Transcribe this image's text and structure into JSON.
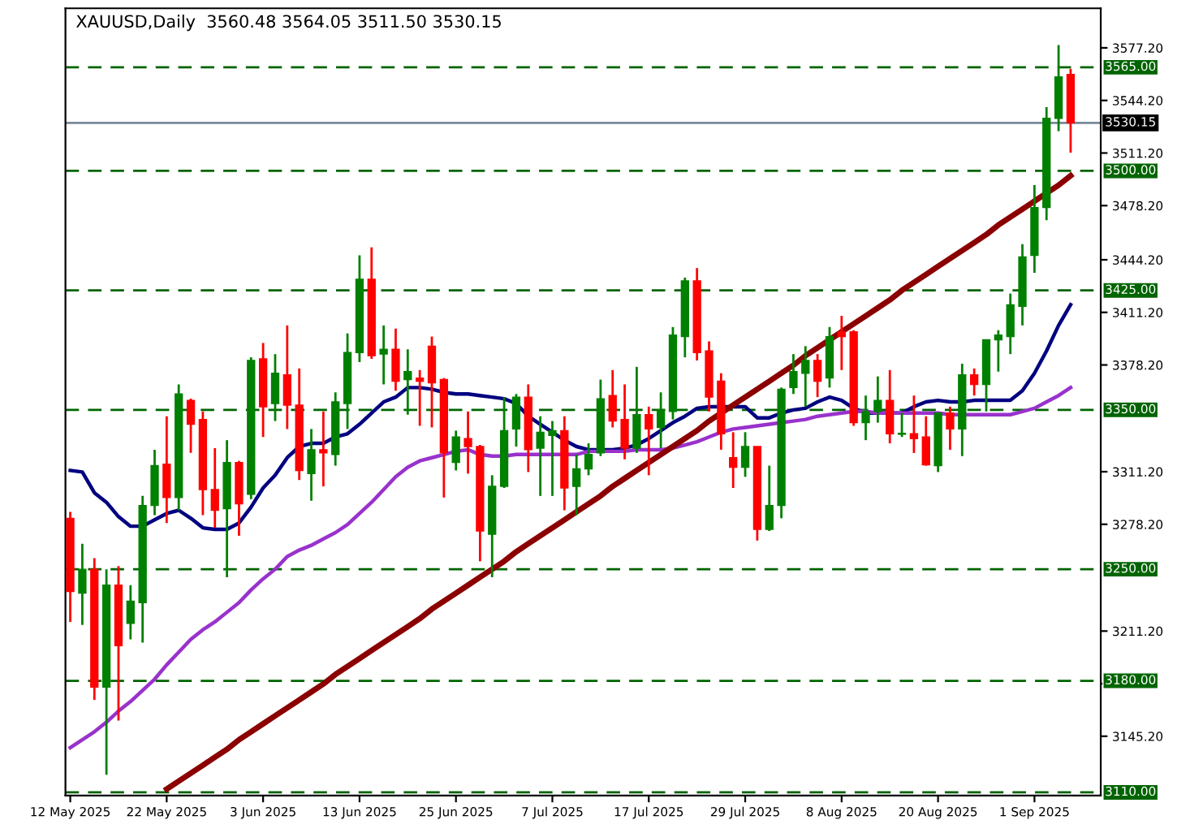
{
  "chart_data": {
    "type": "candlestick",
    "title": "XAUUSD,Daily  3560.48 3564.05 3511.50 3530.15",
    "categories": [
      "12 May 2025",
      null,
      null,
      null,
      null,
      null,
      null,
      null,
      "22 May 2025",
      null,
      null,
      null,
      null,
      null,
      null,
      null,
      "3 Jun 2025",
      null,
      null,
      null,
      null,
      null,
      null,
      null,
      "13 Jun 2025",
      null,
      null,
      null,
      null,
      null,
      null,
      null,
      "25 Jun 2025",
      null,
      null,
      null,
      null,
      null,
      null,
      null,
      "7 Jul 2025",
      null,
      null,
      null,
      null,
      null,
      null,
      null,
      "17 Jul 2025",
      null,
      null,
      null,
      null,
      null,
      null,
      null,
      "29 Jul 2025",
      null,
      null,
      null,
      null,
      null,
      null,
      null,
      "8 Aug 2025",
      null,
      null,
      null,
      null,
      null,
      null,
      null,
      "20 Aug 2025",
      null,
      null,
      null,
      null,
      null,
      null,
      null,
      "1 Sep 2025",
      null,
      null,
      null
    ],
    "ohlc": [
      [
        3282,
        3286,
        3217,
        3236
      ],
      [
        3235,
        3266,
        3215,
        3250
      ],
      [
        3250,
        3257,
        3168,
        3176
      ],
      [
        3176,
        3250,
        3121,
        3240
      ],
      [
        3240,
        3252,
        3155,
        3202
      ],
      [
        3216,
        3240,
        3206,
        3230
      ],
      [
        3229,
        3296,
        3204,
        3290
      ],
      [
        3290,
        3325,
        3284,
        3315
      ],
      [
        3316,
        3346,
        3279,
        3295
      ],
      [
        3295,
        3366,
        3287,
        3360
      ],
      [
        3356,
        3357,
        3323,
        3341
      ],
      [
        3344,
        3349,
        3284,
        3300
      ],
      [
        3300,
        3326,
        3276,
        3287
      ],
      [
        3288,
        3331,
        3245,
        3317
      ],
      [
        3317,
        3318,
        3271,
        3291
      ],
      [
        3297,
        3383,
        3294,
        3381
      ],
      [
        3382,
        3392,
        3333,
        3352
      ],
      [
        3354,
        3385,
        3343,
        3373
      ],
      [
        3372,
        3403,
        3338,
        3353
      ],
      [
        3353,
        3376,
        3306,
        3312
      ],
      [
        3310,
        3338,
        3293,
        3325
      ],
      [
        3325,
        3349,
        3302,
        3323
      ],
      [
        3322,
        3361,
        3315,
        3355
      ],
      [
        3354,
        3398,
        3338,
        3386
      ],
      [
        3386,
        3447,
        3380,
        3432
      ],
      [
        3432,
        3452,
        3382,
        3384
      ],
      [
        3385,
        3403,
        3366,
        3388
      ],
      [
        3388,
        3401,
        3362,
        3368
      ],
      [
        3369,
        3388,
        3347,
        3374
      ],
      [
        3370,
        3375,
        3340,
        3368
      ],
      [
        3390,
        3396,
        3339,
        3367
      ],
      [
        3369,
        3370,
        3295,
        3323
      ],
      [
        3317,
        3337,
        3312,
        3333
      ],
      [
        3332,
        3349,
        3310,
        3327
      ],
      [
        3327,
        3328,
        3255,
        3274
      ],
      [
        3272,
        3309,
        3245,
        3302
      ],
      [
        3302,
        3358,
        3301,
        3337
      ],
      [
        3338,
        3360,
        3327,
        3358
      ],
      [
        3358,
        3366,
        3311,
        3325
      ],
      [
        3326,
        3346,
        3296,
        3336
      ],
      [
        3334,
        3343,
        3296,
        3337
      ],
      [
        3337,
        3346,
        3287,
        3301
      ],
      [
        3302,
        3322,
        3284,
        3313
      ],
      [
        3313,
        3329,
        3309,
        3322
      ],
      [
        3323,
        3369,
        3321,
        3357
      ],
      [
        3359,
        3375,
        3339,
        3343
      ],
      [
        3344,
        3366,
        3319,
        3326
      ],
      [
        3326,
        3377,
        3323,
        3347
      ],
      [
        3347,
        3352,
        3309,
        3338
      ],
      [
        3339,
        3361,
        3326,
        3350
      ],
      [
        3349,
        3402,
        3344,
        3397
      ],
      [
        3396,
        3433,
        3383,
        3431
      ],
      [
        3431,
        3439,
        3381,
        3386
      ],
      [
        3387,
        3393,
        3349,
        3358
      ],
      [
        3368,
        3373,
        3325,
        3335
      ],
      [
        3320,
        3336,
        3301,
        3314
      ],
      [
        3314,
        3336,
        3308,
        3327
      ],
      [
        3327,
        3327,
        3268,
        3275
      ],
      [
        3275,
        3315,
        3274,
        3290
      ],
      [
        3290,
        3364,
        3282,
        3363
      ],
      [
        3364,
        3385,
        3360,
        3374
      ],
      [
        3373,
        3390,
        3352,
        3381
      ],
      [
        3381,
        3385,
        3358,
        3368
      ],
      [
        3370,
        3402,
        3364,
        3396
      ],
      [
        3399,
        3409,
        3375,
        3396
      ],
      [
        3399,
        3400,
        3340,
        3342
      ],
      [
        3342,
        3359,
        3331,
        3349
      ],
      [
        3349,
        3371,
        3342,
        3356
      ],
      [
        3356,
        3375,
        3329,
        3335
      ],
      [
        3335,
        3348,
        3333,
        3335.5
      ],
      [
        3335,
        3359,
        3323,
        3332
      ],
      [
        3333,
        3346,
        3315,
        3315.5
      ],
      [
        3315,
        3348,
        3311,
        3348
      ],
      [
        3348,
        3352,
        3325,
        3338
      ],
      [
        3338,
        3379,
        3321,
        3372
      ],
      [
        3372,
        3376,
        3359,
        3366
      ],
      [
        3366,
        3394,
        3349,
        3394
      ],
      [
        3394,
        3400,
        3374,
        3397
      ],
      [
        3396,
        3423,
        3385,
        3416
      ],
      [
        3415,
        3454,
        3403,
        3446
      ],
      [
        3447,
        3491,
        3436,
        3477
      ],
      [
        3477,
        3540,
        3469,
        3533
      ],
      [
        3533,
        3579,
        3525,
        3559
      ],
      [
        3560.48,
        3564.05,
        3511.5,
        3530.15
      ]
    ],
    "colors": [
      "#ff0000",
      "#008000",
      "#ff0000",
      "#008000",
      "#ff0000",
      "#008000",
      "#008000",
      "#008000",
      "#ff0000",
      "#008000",
      "#ff0000",
      "#ff0000",
      "#ff0000",
      "#008000",
      "#ff0000",
      "#008000",
      "#ff0000",
      "#008000",
      "#ff0000",
      "#ff0000",
      "#008000",
      "#ff0000",
      "#008000",
      "#008000",
      "#008000",
      "#ff0000",
      "#008000",
      "#ff0000",
      "#008000",
      "#ff0000",
      "#ff0000",
      "#ff0000",
      "#008000",
      "#ff0000",
      "#ff0000",
      "#008000",
      "#008000",
      "#008000",
      "#ff0000",
      "#008000",
      "#008000",
      "#ff0000",
      "#008000",
      "#008000",
      "#008000",
      "#ff0000",
      "#ff0000",
      "#008000",
      "#ff0000",
      "#008000",
      "#008000",
      "#008000",
      "#ff0000",
      "#ff0000",
      "#ff0000",
      "#ff0000",
      "#008000",
      "#ff0000",
      "#008000",
      "#008000",
      "#008000",
      "#008000",
      "#ff0000",
      "#008000",
      "#ff0000",
      "#ff0000",
      "#008000",
      "#008000",
      "#ff0000",
      "#008000",
      "#ff0000",
      "#ff0000",
      "#008000",
      "#ff0000",
      "#008000",
      "#ff0000",
      "#008000",
      "#008000",
      "#008000",
      "#008000",
      "#008000",
      "#008000",
      "#008000",
      "#ff0000"
    ],
    "series": [
      {
        "type": "line",
        "color": "#000080",
        "values": [
          3312,
          3311,
          3298,
          3292,
          3283,
          3277,
          3277,
          3281,
          3285,
          3287,
          3282,
          3276,
          3275,
          3275,
          3279,
          3289,
          3301,
          3309,
          3320,
          3327,
          3329,
          3329,
          3333,
          3335,
          3341,
          3348,
          3355,
          3358,
          3364,
          3364,
          3363,
          3361,
          3360,
          3360,
          3359,
          3358,
          3357,
          3354,
          3346,
          3341,
          3336,
          3331,
          3327,
          3325,
          3325,
          3325,
          3326,
          3328,
          3332,
          3337,
          3342,
          3346,
          3351,
          3352,
          3352,
          3352,
          3352,
          3345,
          3345,
          3348,
          3350,
          3351,
          3355,
          3358,
          3356,
          3351,
          3348,
          3348,
          3348,
          3348,
          3352,
          3355,
          3356,
          3355,
          3355,
          3356,
          3356,
          3356,
          3356,
          3362,
          3373,
          3387,
          3403,
          3416
        ]
      },
      {
        "type": "line",
        "color": "#9932cc",
        "values": [
          3138,
          3143,
          3148,
          3154,
          3161,
          3167,
          3174,
          3181,
          3190,
          3198,
          3206,
          3212,
          3217,
          3223,
          3229,
          3237,
          3244,
          3250,
          3258,
          3262,
          3265,
          3269,
          3273,
          3278,
          3285,
          3292,
          3300,
          3308,
          3314,
          3318,
          3320,
          3322,
          3324,
          3325,
          3322,
          3321,
          3321,
          3322,
          3322,
          3322,
          3322,
          3322,
          3322,
          3324,
          3324,
          3324,
          3324,
          3325,
          3325,
          3325,
          3326,
          3328,
          3330,
          3333,
          3336,
          3338,
          3339,
          3340,
          3341,
          3342,
          3343,
          3344,
          3346,
          3347,
          3348,
          3349,
          3349,
          3348,
          3348,
          3348,
          3348,
          3348,
          3348,
          3347,
          3347,
          3347,
          3347,
          3347,
          3347,
          3349,
          3351,
          3355,
          3359,
          3364
        ]
      },
      {
        "type": "line",
        "color": "#8b0000",
        "values": [
          null,
          null,
          null,
          null,
          null,
          null,
          null,
          null,
          3112,
          3117,
          3122,
          3127,
          3132,
          3137,
          3143,
          3148,
          3153,
          3158,
          3163,
          3168,
          3173,
          3178,
          3184,
          3189,
          3194,
          3199,
          3204,
          3209,
          3214,
          3219,
          3225,
          3230,
          3235,
          3240,
          3245,
          3250,
          3255,
          3261,
          3266,
          3271,
          3276,
          3281,
          3286,
          3291,
          3296,
          3302,
          3307,
          3312,
          3317,
          3322,
          3327,
          3332,
          3337,
          3343,
          3348,
          3353,
          3358,
          3363,
          3368,
          3373,
          3378,
          3384,
          3389,
          3394,
          3399,
          3404,
          3409,
          3414,
          3419,
          3425,
          3430,
          3435,
          3440,
          3445,
          3450,
          3455,
          3460,
          3466,
          3471,
          3476,
          3481,
          3486,
          3491,
          3497
        ]
      }
    ],
    "ylim": [
      3108,
      3602
    ],
    "yticks": [
      {
        "value": 3577.2,
        "label": "3577.20"
      },
      {
        "value": 3544.2,
        "label": "3544.20"
      },
      {
        "value": 3511.2,
        "label": "3511.20"
      },
      {
        "value": 3478.2,
        "label": "3478.20"
      },
      {
        "value": 3444.2,
        "label": "3444.20"
      },
      {
        "value": 3411.2,
        "label": "3411.20"
      },
      {
        "value": 3378.2,
        "label": "3378.20"
      },
      {
        "value": 3311.2,
        "label": "3311.20"
      },
      {
        "value": 3278.2,
        "label": "3278.20"
      },
      {
        "value": 3211.2,
        "label": "3211.20"
      },
      {
        "value": 3178.2,
        "label": null
      },
      {
        "value": 3145.2,
        "label": "3145.20"
      }
    ],
    "ref_lines": [
      {
        "axis": "y",
        "value": 3565,
        "label": "3565.00",
        "color": "#006400",
        "line_style": "dashed"
      },
      {
        "axis": "y",
        "value": 3530.15,
        "label": "3530.15",
        "color": "#778899",
        "line_style": "solid"
      },
      {
        "axis": "y",
        "value": 3500,
        "label": "3500.00",
        "color": "#006400",
        "line_style": "dashed"
      },
      {
        "axis": "y",
        "value": 3425,
        "label": "3425.00",
        "color": "#006400",
        "line_style": "dashed"
      },
      {
        "axis": "y",
        "value": 3350,
        "label": "3350.00",
        "color": "#006400",
        "line_style": "dashed"
      },
      {
        "axis": "y",
        "value": 3250,
        "label": "3250.00",
        "color": "#006400",
        "line_style": "dashed"
      },
      {
        "axis": "y",
        "value": 3180,
        "label": "3180.00",
        "color": "#006400",
        "line_style": "dashed"
      },
      {
        "axis": "y",
        "value": 3110,
        "label": "3110.00",
        "color": "#006400",
        "line_style": "dashed"
      }
    ],
    "grid": false
  }
}
